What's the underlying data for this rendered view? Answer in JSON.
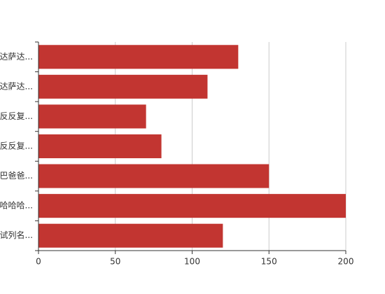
{
  "chart_data": {
    "type": "bar",
    "orientation": "horizontal",
    "categories": [
      "达萨达...",
      "达萨达...",
      "反反复...",
      "反反复...",
      "巴爸爸...",
      "哈哈哈...",
      "试列名..."
    ],
    "values": [
      130,
      110,
      70,
      80,
      150,
      200,
      120
    ],
    "color": "#c23531",
    "xlim": [
      0,
      200
    ],
    "xticks": [
      0,
      50,
      100,
      150,
      200
    ],
    "grid": true
  }
}
